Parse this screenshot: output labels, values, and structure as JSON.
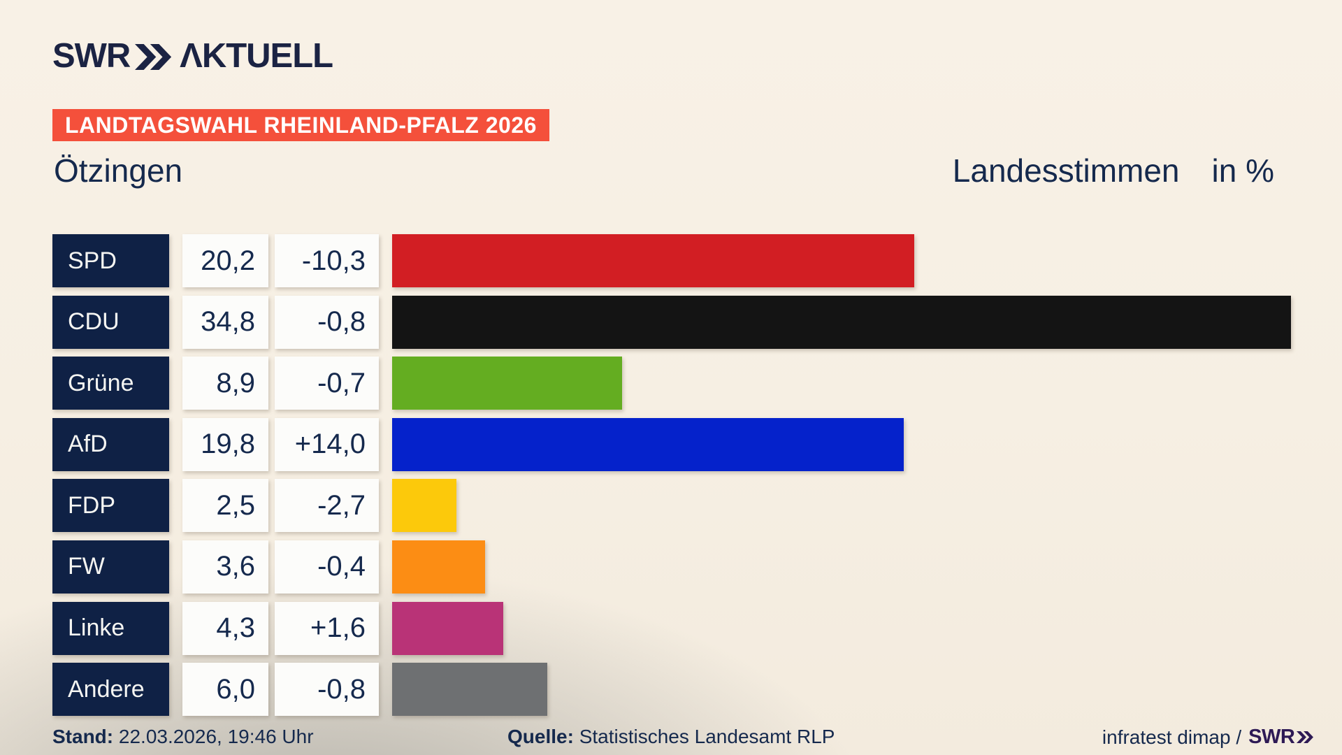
{
  "header": {
    "logo_text": "SWR",
    "logo_suffix": "ΛKTUELL",
    "banner": "LANDTAGSWAHL RHEINLAND-PFALZ 2026",
    "municipality": "Ötzingen",
    "vote_type": "Landesstimmen",
    "unit": "in %"
  },
  "chart_data": {
    "type": "bar",
    "orientation": "horizontal",
    "title": "Ötzingen – Landesstimmen in %",
    "categories": [
      "SPD",
      "CDU",
      "Grüne",
      "AfD",
      "FDP",
      "FW",
      "Linke",
      "Andere"
    ],
    "values": [
      20.2,
      34.8,
      8.9,
      19.8,
      2.5,
      3.6,
      4.3,
      6.0
    ],
    "value_labels": [
      "20,2",
      "34,8",
      "8,9",
      "19,8",
      "2,5",
      "3,6",
      "4,3",
      "6,0"
    ],
    "changes": [
      -10.3,
      -0.8,
      -0.7,
      14.0,
      -2.7,
      -0.4,
      1.6,
      -0.8
    ],
    "change_labels": [
      "-10,3",
      "-0,8",
      "-0,7",
      "+14,0",
      "-2,7",
      "-0,4",
      "+1,6",
      "-0,8"
    ],
    "bar_colors": [
      "#d21e23",
      "#141414",
      "#64ad21",
      "#0522cb",
      "#fcc90b",
      "#fc8d14",
      "#b93377",
      "#6e7072"
    ],
    "xlim": [
      0,
      34.8
    ],
    "legend": false,
    "grid": false
  },
  "footer": {
    "stand_label": "Stand:",
    "stand_value": " 22.03.2026, 19:46 Uhr",
    "quelle_label": "Quelle:",
    "quelle_value": " Statistisches Landesamt RLP",
    "credit_text": "infratest dimap /",
    "credit_brand": "SWR"
  },
  "colors": {
    "background": "#f7efe3",
    "background_shade": "#cfccc4",
    "banner_red": "#f4503b",
    "navy_box": "#0f2145",
    "text_navy": "#15294d",
    "logo_navy": "#1b2343",
    "credit_purple": "#2e1a55",
    "cell_white": "#fcfcfa"
  }
}
